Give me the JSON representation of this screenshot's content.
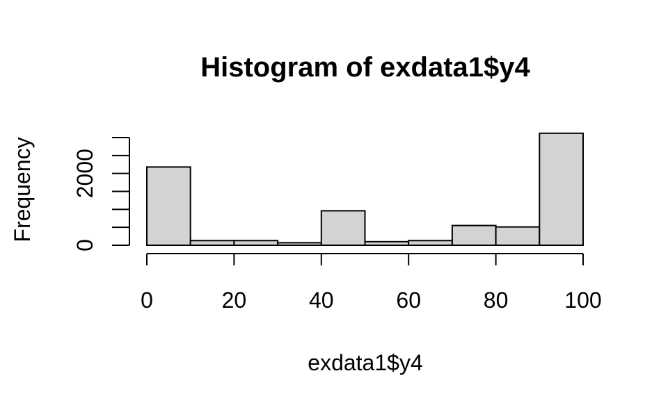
{
  "chart_data": {
    "type": "bar",
    "title": "Histogram of exdata1$y4",
    "xlabel": "exdata1$y4",
    "ylabel": "Frequency",
    "bins": [
      {
        "start": 0,
        "end": 10,
        "count": 2180
      },
      {
        "start": 10,
        "end": 20,
        "count": 130
      },
      {
        "start": 20,
        "end": 30,
        "count": 130
      },
      {
        "start": 30,
        "end": 40,
        "count": 70
      },
      {
        "start": 40,
        "end": 50,
        "count": 960
      },
      {
        "start": 50,
        "end": 60,
        "count": 100
      },
      {
        "start": 60,
        "end": 70,
        "count": 130
      },
      {
        "start": 70,
        "end": 80,
        "count": 550
      },
      {
        "start": 80,
        "end": 90,
        "count": 510
      },
      {
        "start": 90,
        "end": 100,
        "count": 3120
      }
    ],
    "xticks": [
      0,
      20,
      40,
      60,
      80,
      100
    ],
    "xtick_labels": [
      "0",
      "20",
      "40",
      "60",
      "80",
      "100"
    ],
    "yticks": [
      0,
      500,
      1000,
      1500,
      2000,
      2500,
      3000
    ],
    "ytick_labels": [
      "0",
      "",
      "",
      "",
      "2000",
      "",
      ""
    ],
    "xlim": [
      0,
      100
    ],
    "ylim": [
      0,
      3000
    ],
    "bar_color": "#d3d3d3",
    "grid": false,
    "legend": "none"
  }
}
